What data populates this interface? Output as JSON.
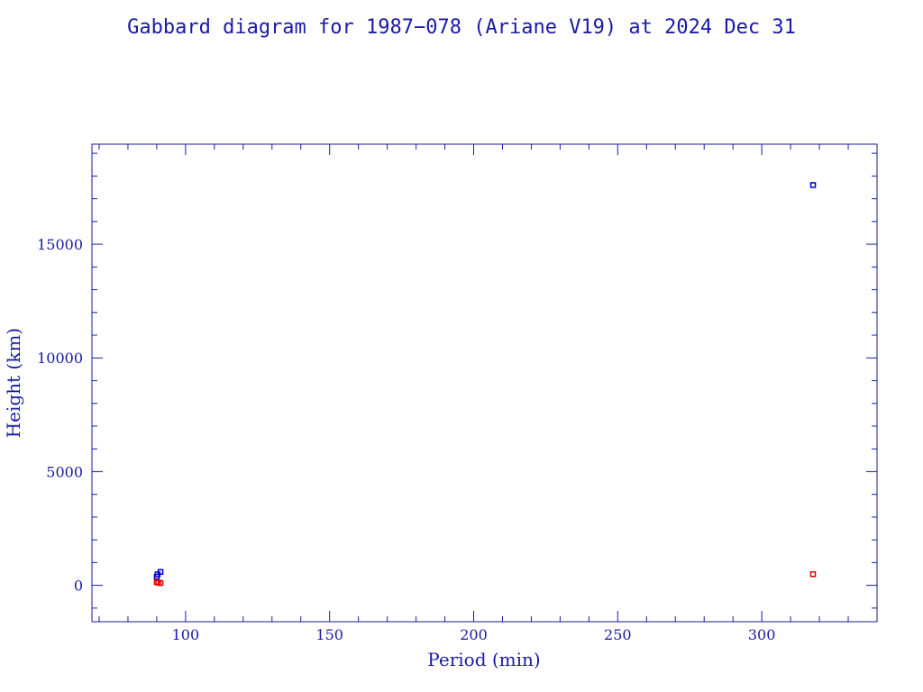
{
  "chart_data": {
    "type": "scatter",
    "title": "Gabbard diagram for 1987−078 (Ariane V19) at 2024 Dec 31",
    "xlabel": "Period (min)",
    "ylabel": "Height (km)",
    "xlim": [
      67.5,
      340
    ],
    "ylim": [
      -1600,
      19400
    ],
    "x_ticks": [
      100,
      150,
      200,
      250,
      300
    ],
    "y_ticks": [
      0,
      5000,
      10000,
      15000
    ],
    "x_minor_step": 10,
    "y_minor_step": 1000,
    "grid": false,
    "marker": "square",
    "series": [
      {
        "color": "#0000cc",
        "points": [
          {
            "x": 90.0,
            "y": 380
          },
          {
            "x": 90.3,
            "y": 480
          },
          {
            "x": 91.3,
            "y": 590
          },
          {
            "x": 317.8,
            "y": 17600
          }
        ]
      },
      {
        "color": "#dd0000",
        "points": [
          {
            "x": 90.0,
            "y": 140
          },
          {
            "x": 90.5,
            "y": 120
          },
          {
            "x": 91.3,
            "y": 100
          },
          {
            "x": 317.8,
            "y": 490
          }
        ]
      }
    ]
  }
}
